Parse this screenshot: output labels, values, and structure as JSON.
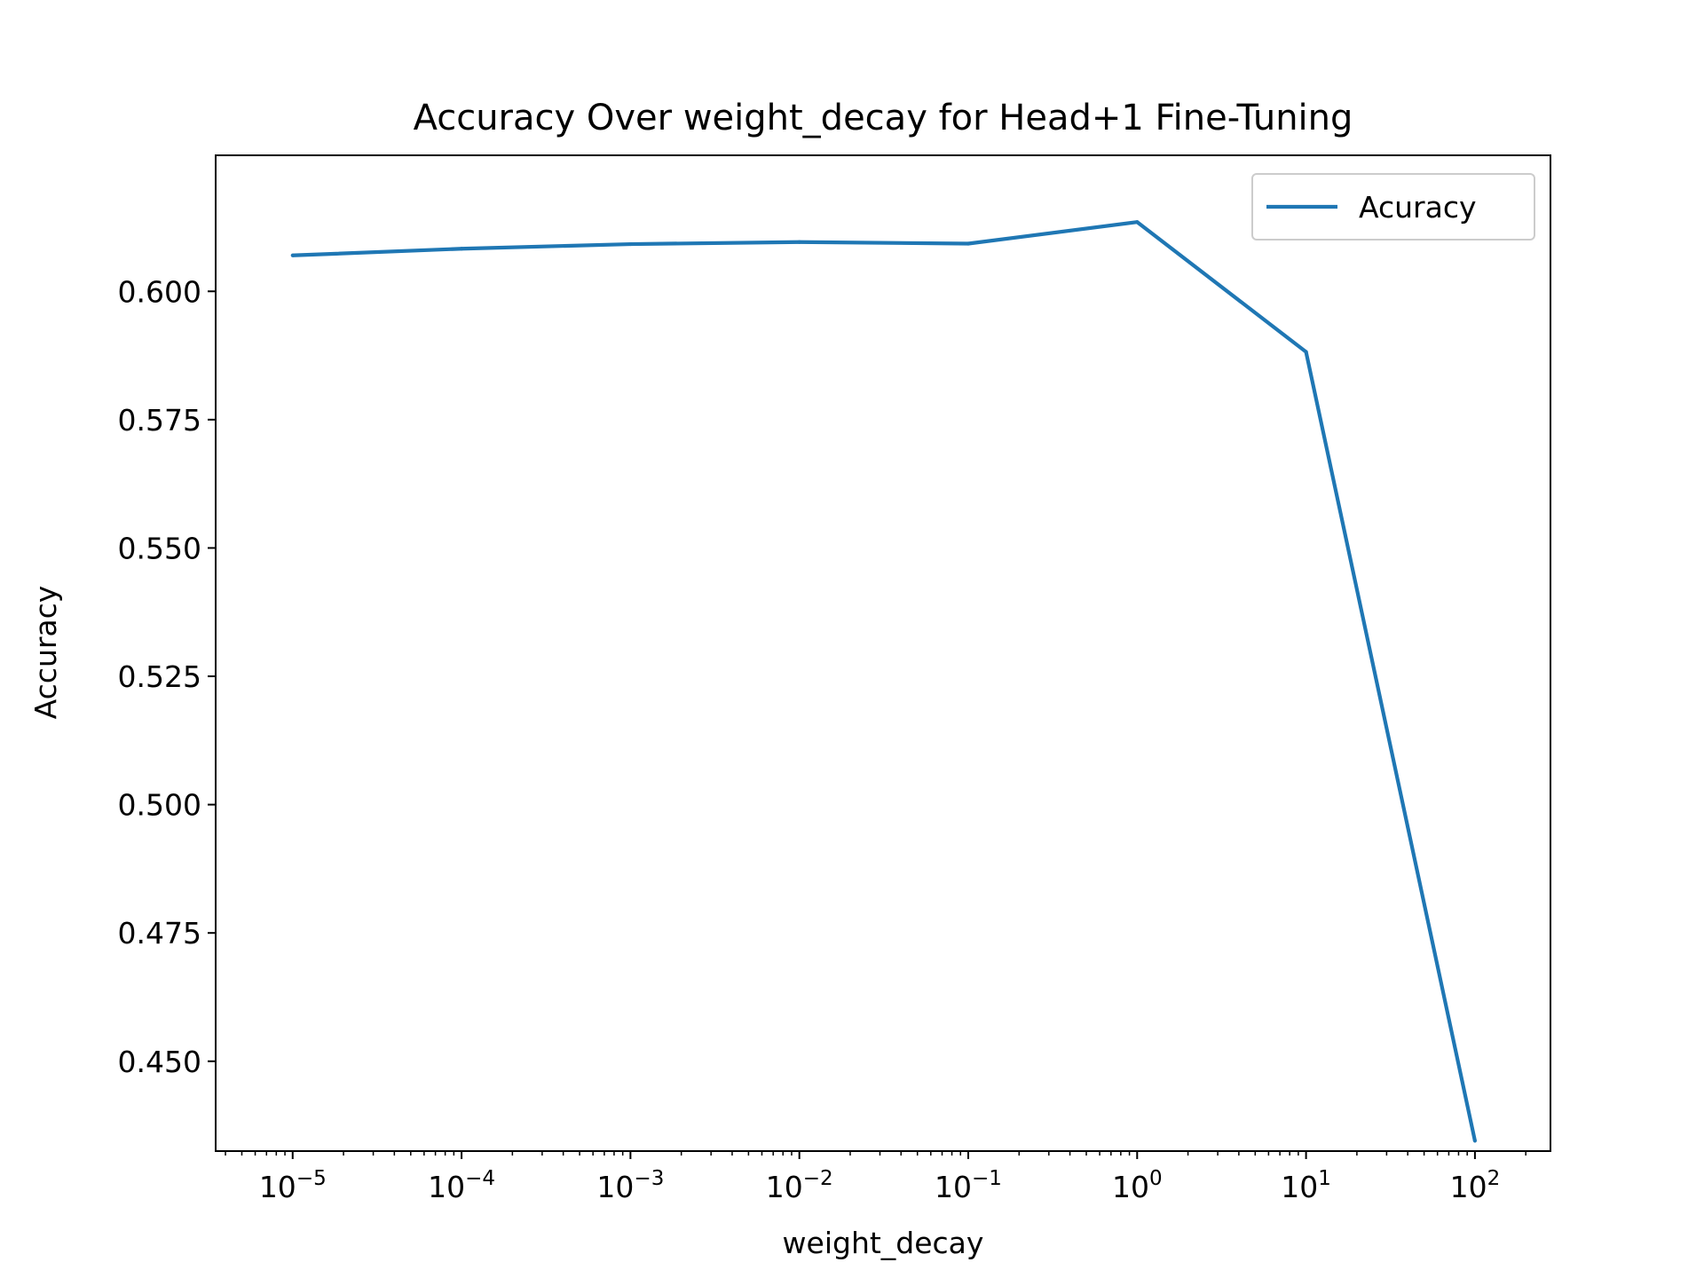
{
  "chart_data": {
    "type": "line",
    "title": "Accuracy Over weight_decay for Head+1 Fine-Tuning",
    "xlabel": "weight_decay",
    "ylabel": "Accuracy",
    "xscale": "log",
    "x": [
      1e-05,
      0.0001,
      0.001,
      0.01,
      0.1,
      1,
      10,
      100
    ],
    "xlim": [
      3.5e-06,
      280
    ],
    "ylim": [
      0.4325,
      0.6265
    ],
    "xticks": [
      {
        "value": 1e-05,
        "base": "10",
        "exp": "−5"
      },
      {
        "value": 0.0001,
        "base": "10",
        "exp": "−4"
      },
      {
        "value": 0.001,
        "base": "10",
        "exp": "−3"
      },
      {
        "value": 0.01,
        "base": "10",
        "exp": "−2"
      },
      {
        "value": 0.1,
        "base": "10",
        "exp": "−1"
      },
      {
        "value": 1,
        "base": "10",
        "exp": "0"
      },
      {
        "value": 10,
        "base": "10",
        "exp": "1"
      },
      {
        "value": 100,
        "base": "10",
        "exp": "2"
      }
    ],
    "yticks": [
      {
        "value": 0.45,
        "label": "0.450"
      },
      {
        "value": 0.475,
        "label": "0.475"
      },
      {
        "value": 0.5,
        "label": "0.500"
      },
      {
        "value": 0.525,
        "label": "0.525"
      },
      {
        "value": 0.55,
        "label": "0.550"
      },
      {
        "value": 0.575,
        "label": "0.575"
      },
      {
        "value": 0.6,
        "label": "0.600"
      }
    ],
    "series": [
      {
        "name": "Acuracy",
        "color": "#1f77b4",
        "values": [
          0.607,
          0.6083,
          0.6092,
          0.6096,
          0.6093,
          0.6135,
          0.5882,
          0.4345
        ]
      }
    ],
    "legend": {
      "position": "top-right"
    },
    "grid": false
  }
}
